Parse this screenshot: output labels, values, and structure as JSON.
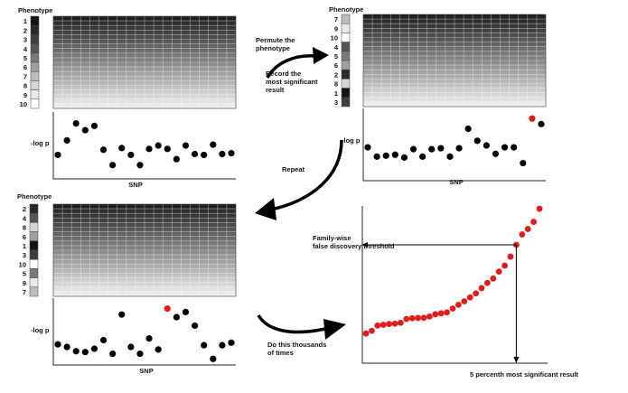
{
  "phenotype_label": "Phenotype",
  "ylabel": "-log p",
  "xlabel": "SNP",
  "panels": [
    {
      "id": "original",
      "phenotype_values": [
        "1",
        "2",
        "3",
        "4",
        "5",
        "6",
        "7",
        "8",
        "9",
        "10"
      ],
      "phenotype_shades": [
        "#141414",
        "#2a2a2a",
        "#3e3e3e",
        "#555555",
        "#7a7a7a",
        "#9e9e9e",
        "#bdbdbd",
        "#d6d6d6",
        "#eaeaea",
        "#ffffff"
      ],
      "points_y": [
        2.5,
        4.2,
        6.2,
        5.4,
        5.9,
        3.1,
        1.3,
        3.3,
        2.5,
        1.3,
        3.2,
        3.6,
        3.2,
        2.0,
        3.6,
        2.6,
        2.5,
        3.7,
        2.6,
        2.7
      ],
      "highlight_index": null
    },
    {
      "id": "permuted-1",
      "phenotype_values": [
        "7",
        "9",
        "10",
        "4",
        "5",
        "6",
        "2",
        "8",
        "1",
        "3"
      ],
      "phenotype_shades": [
        "#bdbdbd",
        "#eaeaea",
        "#ffffff",
        "#555555",
        "#7a7a7a",
        "#9e9e9e",
        "#2a2a2a",
        "#d6d6d6",
        "#141414",
        "#3e3e3e"
      ],
      "points_y": [
        3.3,
        2.3,
        2.4,
        2.5,
        2.2,
        3.1,
        2.3,
        3.1,
        3.2,
        2.3,
        3.2,
        5.3,
        4.0,
        3.5,
        2.6,
        3.3,
        3.3,
        1.6,
        6.4,
        5.8
      ],
      "highlight_index": 18
    },
    {
      "id": "permuted-2",
      "phenotype_values": [
        "2",
        "4",
        "8",
        "6",
        "1",
        "3",
        "10",
        "5",
        "9",
        "7"
      ],
      "phenotype_shades": [
        "#2a2a2a",
        "#555555",
        "#d6d6d6",
        "#9e9e9e",
        "#141414",
        "#3e3e3e",
        "#ffffff",
        "#7a7a7a",
        "#eaeaea",
        "#bdbdbd"
      ],
      "points_y": [
        2.1,
        1.8,
        1.3,
        1.2,
        1.6,
        2.6,
        1.0,
        5.6,
        1.8,
        1.0,
        2.8,
        1.5,
        6.3,
        5.3,
        5.9,
        4.3,
        2.0,
        0.4,
        2.0,
        2.3
      ],
      "highlight_index": 12
    }
  ],
  "arrow_labels": {
    "permute_label": "Permute the phenotype",
    "record_label": "Record the most significant result",
    "repeat_label": "Repeat",
    "thousands_label": "Do this thousands of times"
  },
  "result_panel": {
    "threshold_label": "Family-wise false discovery threshold",
    "percentile_label": "5 percenth most significant result",
    "points_y": [
      0.28,
      0.46,
      0.8,
      0.85,
      0.9,
      0.92,
      0.98,
      1.22,
      1.27,
      1.29,
      1.3,
      1.38,
      1.53,
      1.59,
      1.65,
      1.9,
      2.14,
      2.37,
      2.62,
      2.88,
      3.22,
      3.56,
      3.84,
      4.29,
      4.68,
      5.26,
      6.02,
      6.7,
      7.05,
      7.51,
      8.36
    ],
    "threshold_index": 26,
    "color": "#e31b1b"
  },
  "colors": {
    "significant": "#e31b1b",
    "point": "#000000"
  }
}
